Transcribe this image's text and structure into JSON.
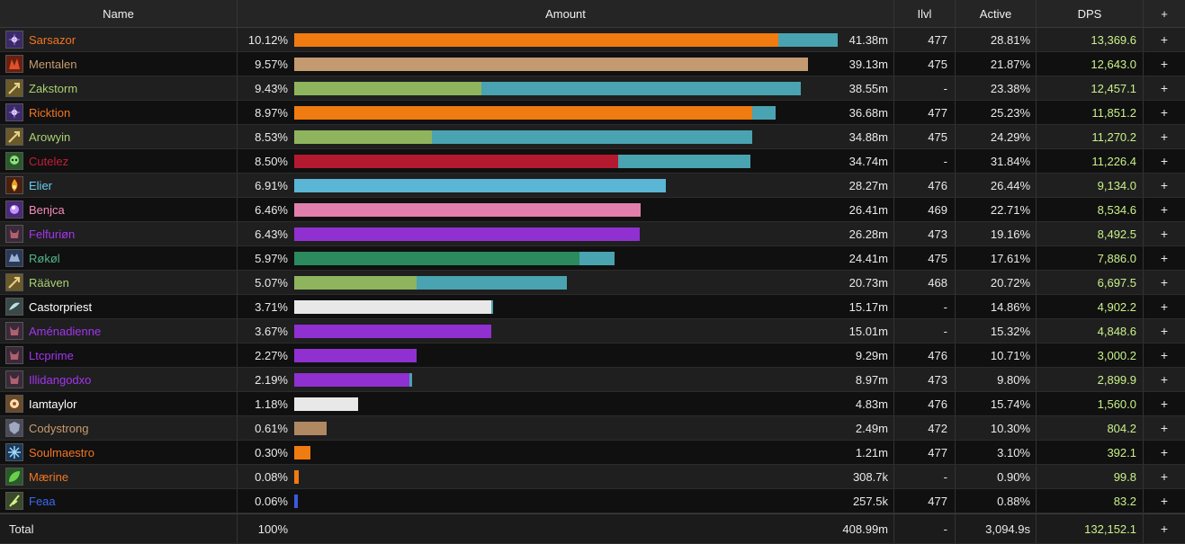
{
  "header": {
    "name": "Name",
    "amount": "Amount",
    "ilvl": "Ilvl",
    "active": "Active",
    "dps": "DPS",
    "plus": "+"
  },
  "colors": {
    "second_segment": "#4aa3b0"
  },
  "rows": [
    {
      "name": "Sarsazor",
      "color": "#f27521",
      "icon": "spark-icon",
      "iconbg": "#3a2a6a",
      "pct": "10.12%",
      "amount": "41.38m",
      "ilvl": "477",
      "active": "28.81%",
      "dps": "13,369.6",
      "share": 41.38,
      "main_share": 0.89,
      "barcolor": "#f07b10",
      "plus": "+"
    },
    {
      "name": "Mentalen",
      "color": "#c79c6e",
      "icon": "rage-icon",
      "iconbg": "#6a2010",
      "pct": "9.57%",
      "amount": "39.13m",
      "ilvl": "475",
      "active": "21.87%",
      "dps": "12,643.0",
      "share": 39.13,
      "main_share": 1.0,
      "barcolor": "#c49a70",
      "plus": "+"
    },
    {
      "name": "Zakstorm",
      "color": "#a9d271",
      "icon": "arrow-icon",
      "iconbg": "#6a5a2a",
      "pct": "9.43%",
      "amount": "38.55m",
      "ilvl": "-",
      "active": "23.38%",
      "dps": "12,457.1",
      "share": 38.55,
      "main_share": 0.37,
      "barcolor": "#8fb45e",
      "plus": "+"
    },
    {
      "name": "Ricktion",
      "color": "#f27521",
      "icon": "spark-icon",
      "iconbg": "#3a2a6a",
      "pct": "8.97%",
      "amount": "36.68m",
      "ilvl": "477",
      "active": "25.23%",
      "dps": "11,851.2",
      "share": 36.68,
      "main_share": 0.95,
      "barcolor": "#f07b10",
      "plus": "+"
    },
    {
      "name": "Arowyin",
      "color": "#a9d271",
      "icon": "arrow-icon",
      "iconbg": "#6a5a2a",
      "pct": "8.53%",
      "amount": "34.88m",
      "ilvl": "475",
      "active": "24.29%",
      "dps": "11,270.2",
      "share": 34.88,
      "main_share": 0.3,
      "barcolor": "#8fb45e",
      "plus": "+"
    },
    {
      "name": "Cutelez",
      "color": "#c41e3a",
      "icon": "skull-icon",
      "iconbg": "#2a5a2a",
      "pct": "8.50%",
      "amount": "34.74m",
      "ilvl": "-",
      "active": "31.84%",
      "dps": "11,226.4",
      "share": 34.74,
      "main_share": 0.71,
      "barcolor": "#b31a30",
      "plus": "+"
    },
    {
      "name": "Elier",
      "color": "#69ccf0",
      "icon": "fire-icon",
      "iconbg": "#4a2010",
      "pct": "6.91%",
      "amount": "28.27m",
      "ilvl": "476",
      "active": "26.44%",
      "dps": "9,134.0",
      "share": 28.27,
      "main_share": 1.0,
      "barcolor": "#5bb5d5",
      "plus": "+"
    },
    {
      "name": "Benjca",
      "color": "#f58cba",
      "icon": "orb-icon",
      "iconbg": "#4a2a7a",
      "pct": "6.46%",
      "amount": "26.41m",
      "ilvl": "469",
      "active": "22.71%",
      "dps": "8,534.6",
      "share": 26.41,
      "main_share": 1.0,
      "barcolor": "#e07fac",
      "plus": "+"
    },
    {
      "name": "Felfuriøn",
      "color": "#a335ee",
      "icon": "demon-icon",
      "iconbg": "#3a2a3a",
      "pct": "6.43%",
      "amount": "26.28m",
      "ilvl": "473",
      "active": "19.16%",
      "dps": "8,492.5",
      "share": 26.28,
      "main_share": 1.0,
      "barcolor": "#9030d0",
      "plus": "+"
    },
    {
      "name": "Røkøl",
      "color": "#52b58a",
      "icon": "wolf-icon",
      "iconbg": "#2a3a5a",
      "pct": "5.97%",
      "amount": "24.41m",
      "ilvl": "475",
      "active": "17.61%",
      "dps": "7,886.0",
      "share": 24.41,
      "main_share": 0.89,
      "barcolor": "#2b8a5e",
      "plus": "+"
    },
    {
      "name": "Rääven",
      "color": "#a9d271",
      "icon": "arrow-icon",
      "iconbg": "#6a5a2a",
      "pct": "5.07%",
      "amount": "20.73m",
      "ilvl": "468",
      "active": "20.72%",
      "dps": "6,697.5",
      "share": 20.73,
      "main_share": 0.45,
      "barcolor": "#8fb45e",
      "plus": "+"
    },
    {
      "name": "Castorpriest",
      "color": "#ffffff",
      "icon": "wing-icon",
      "iconbg": "#3a4a4a",
      "pct": "3.71%",
      "amount": "15.17m",
      "ilvl": "-",
      "active": "14.86%",
      "dps": "4,902.2",
      "share": 15.17,
      "main_share": 0.99,
      "barcolor": "#e8e8e8",
      "plus": "+"
    },
    {
      "name": "Aménadienne",
      "color": "#a335ee",
      "icon": "demon-icon",
      "iconbg": "#3a2a3a",
      "pct": "3.67%",
      "amount": "15.01m",
      "ilvl": "-",
      "active": "15.32%",
      "dps": "4,848.6",
      "share": 15.01,
      "main_share": 1.0,
      "barcolor": "#9030d0",
      "plus": "+"
    },
    {
      "name": "Ltcprime",
      "color": "#a335ee",
      "icon": "demon-icon",
      "iconbg": "#3a2a3a",
      "pct": "2.27%",
      "amount": "9.29m",
      "ilvl": "476",
      "active": "10.71%",
      "dps": "3,000.2",
      "share": 9.29,
      "main_share": 1.0,
      "barcolor": "#9030d0",
      "plus": "+"
    },
    {
      "name": "Illidangodxo",
      "color": "#a335ee",
      "icon": "demon-icon",
      "iconbg": "#3a2a3a",
      "pct": "2.19%",
      "amount": "8.97m",
      "ilvl": "473",
      "active": "9.80%",
      "dps": "2,899.9",
      "share": 8.97,
      "main_share": 0.98,
      "barcolor": "#9030d0",
      "plus": "+"
    },
    {
      "name": "Iamtaylor",
      "color": "#ffffff",
      "icon": "holy-icon",
      "iconbg": "#6a4a2a",
      "pct": "1.18%",
      "amount": "4.83m",
      "ilvl": "476",
      "active": "15.74%",
      "dps": "1,560.0",
      "share": 4.83,
      "main_share": 1.0,
      "barcolor": "#e8e8e8",
      "plus": "+"
    },
    {
      "name": "Codystrong",
      "color": "#c79c6e",
      "icon": "shield-icon",
      "iconbg": "#4a4a5a",
      "pct": "0.61%",
      "amount": "2.49m",
      "ilvl": "472",
      "active": "10.30%",
      "dps": "804.2",
      "share": 2.49,
      "main_share": 1.0,
      "barcolor": "#b08862",
      "plus": "+"
    },
    {
      "name": "Soulmaestro",
      "color": "#f27521",
      "icon": "frost-icon",
      "iconbg": "#1a3a5a",
      "pct": "0.30%",
      "amount": "1.21m",
      "ilvl": "477",
      "active": "3.10%",
      "dps": "392.1",
      "share": 1.21,
      "main_share": 1.0,
      "barcolor": "#f07b10",
      "plus": "+"
    },
    {
      "name": "Mærine",
      "color": "#f27521",
      "icon": "leaf-icon",
      "iconbg": "#2a5a2a",
      "pct": "0.08%",
      "amount": "308.7k",
      "ilvl": "-",
      "active": "0.90%",
      "dps": "99.8",
      "share": 0.3087,
      "main_share": 1.0,
      "barcolor": "#f07b10",
      "plus": "+"
    },
    {
      "name": "Feaa",
      "color": "#3a6bf0",
      "icon": "nature-icon",
      "iconbg": "#3a4a2a",
      "pct": "0.06%",
      "amount": "257.5k",
      "ilvl": "477",
      "active": "0.88%",
      "dps": "83.2",
      "share": 0.2575,
      "main_share": 1.0,
      "barcolor": "#3a5ae0",
      "plus": "+"
    }
  ],
  "total": {
    "label": "Total",
    "pct": "100%",
    "amount": "408.99m",
    "ilvl": "-",
    "active": "3,094.9s",
    "dps": "132,152.1",
    "plus": "+"
  },
  "scale_max_share": 41.38
}
